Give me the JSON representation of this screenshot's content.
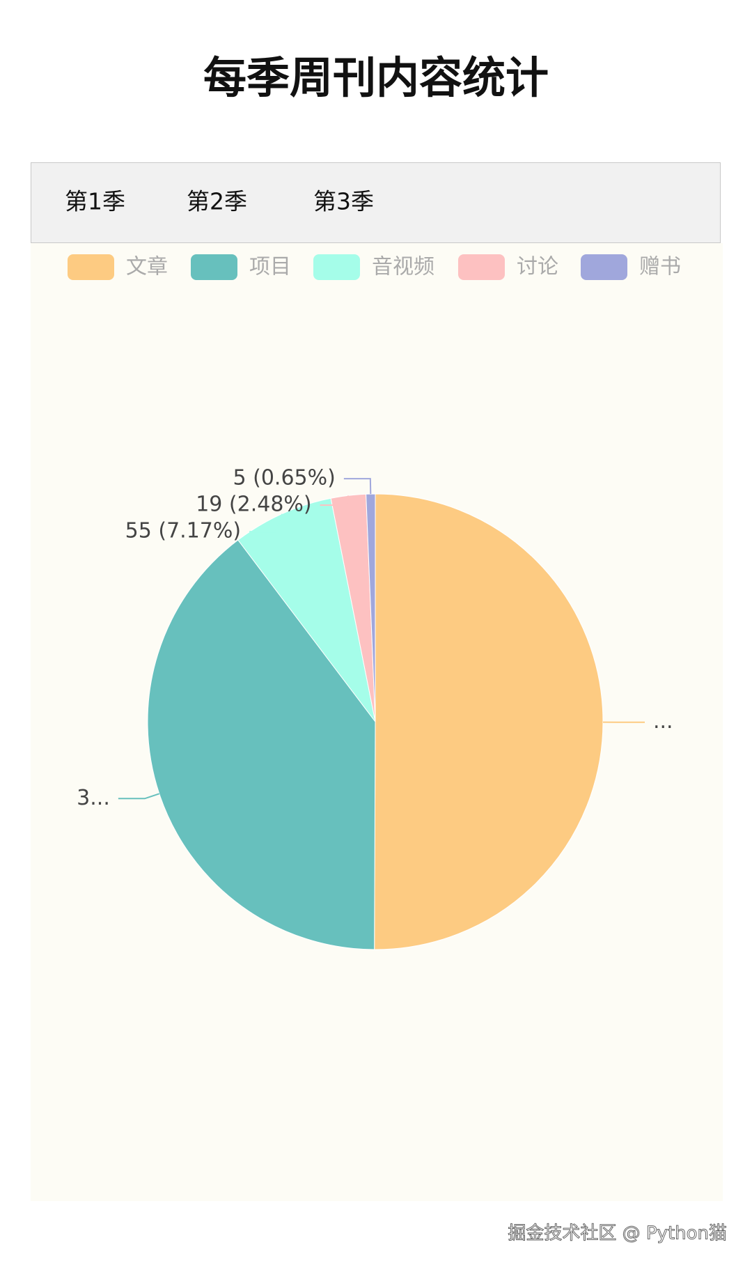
{
  "title": "每季周刊内容统计",
  "tabs": [
    "第1季",
    "第2季",
    "第3季"
  ],
  "chart_data": {
    "type": "pie",
    "categories": [
      "文章",
      "项目",
      "音视频",
      "讨论",
      "赠书"
    ],
    "values": [
      384,
      304,
      55,
      19,
      5
    ],
    "value_labels": [
      "...",
      "3...",
      "55 (7.17%)",
      "19 (2.48%)",
      "5 (0.65%)"
    ],
    "colors": [
      "#fdcb82",
      "#67c0bd",
      "#a5fde9",
      "#fdc1c1",
      "#a0a7dc"
    ],
    "legend": "top"
  },
  "watermark": "掘金技术社区 @ Python猫"
}
